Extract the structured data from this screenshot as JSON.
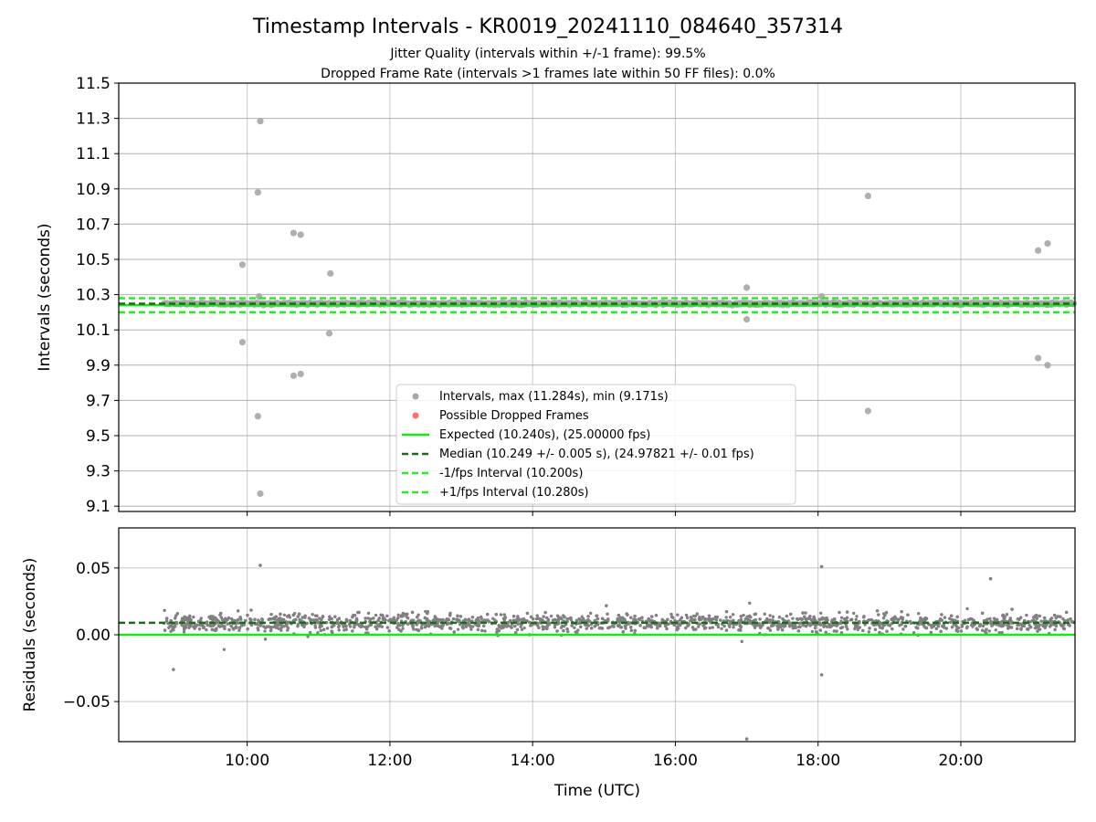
{
  "title": "Timestamp Intervals - KR0019_20241110_084640_357314",
  "subtitle_1": "Jitter Quality (intervals within +/-1 frame): 99.5%",
  "subtitle_2": "Dropped Frame Rate (intervals >1 frames late within 50 FF files): 0.0%",
  "colors": {
    "points": "#808080",
    "points_top": "#a6a6a6",
    "dropped": "#ff4d4d",
    "expected": "#19e619",
    "median": "#1a6b1a",
    "interval": "#22ee22",
    "grid": "#b0b0b0"
  },
  "chart_data": [
    {
      "type": "scatter",
      "ylabel": "Intervals (seconds)",
      "ylim": [
        9.07,
        11.5
      ],
      "xlim_hours": [
        8.2,
        21.6
      ],
      "yticks": [
        "9.1",
        "9.3",
        "9.5",
        "9.7",
        "9.9",
        "10.1",
        "10.3",
        "10.5",
        "10.7",
        "10.9",
        "11.1",
        "11.3",
        "11.5"
      ],
      "grid": true,
      "legend_position": "lower center",
      "lines": {
        "expected": 10.24,
        "median": 10.249,
        "minus_interval": 10.2,
        "plus_interval": 10.28
      },
      "outliers": [
        {
          "t": "10:11",
          "y": 11.284
        },
        {
          "t": "10:09",
          "y": 10.88
        },
        {
          "t": "09:56",
          "y": 10.47
        },
        {
          "t": "10:10",
          "y": 10.29
        },
        {
          "t": "10:39",
          "y": 10.65
        },
        {
          "t": "10:45",
          "y": 10.64
        },
        {
          "t": "11:10",
          "y": 10.42
        },
        {
          "t": "09:56",
          "y": 10.03
        },
        {
          "t": "11:09",
          "y": 10.08
        },
        {
          "t": "10:39",
          "y": 9.84
        },
        {
          "t": "10:45",
          "y": 9.85
        },
        {
          "t": "10:09",
          "y": 9.61
        },
        {
          "t": "10:11",
          "y": 9.171
        },
        {
          "t": "17:00",
          "y": 10.34
        },
        {
          "t": "17:00",
          "y": 10.16
        },
        {
          "t": "18:42",
          "y": 10.86
        },
        {
          "t": "18:42",
          "y": 9.64
        },
        {
          "t": "18:03",
          "y": 10.29
        },
        {
          "t": "21:05",
          "y": 10.55
        },
        {
          "t": "21:13",
          "y": 10.59
        },
        {
          "t": "21:05",
          "y": 9.94
        },
        {
          "t": "21:13",
          "y": 9.9
        }
      ],
      "series": [
        {
          "name": "Intervals, max (11.284s), min (9.171s)"
        },
        {
          "name": "Possible Dropped Frames"
        },
        {
          "name": "Expected (10.240s), (25.00000 fps)"
        },
        {
          "name": "Median (10.249 +/- 0.005 s), (24.97821 +/- 0.01 fps)"
        },
        {
          "name": "-1/fps Interval (10.200s)"
        },
        {
          "name": "+1/fps Interval (10.280s)"
        }
      ]
    },
    {
      "type": "scatter",
      "ylabel": "Residuals (seconds)",
      "xlabel": "Time (UTC)",
      "ylim": [
        -0.08,
        0.08
      ],
      "xlim_hours": [
        8.2,
        21.6
      ],
      "yticks": [
        "−0.05",
        "0.00",
        "0.05"
      ],
      "ytick_values": [
        -0.05,
        0.0,
        0.05
      ],
      "xticks": [
        "10:00",
        "12:00",
        "14:00",
        "16:00",
        "18:00",
        "20:00"
      ],
      "xtick_hours": [
        10,
        12,
        14,
        16,
        18,
        20
      ],
      "lines": {
        "expected": 0.0,
        "median": 0.009
      },
      "outliers": [
        {
          "t": "10:11",
          "y": 0.052
        },
        {
          "t": "18:03",
          "y": 0.051
        },
        {
          "t": "17:00",
          "y": -0.078
        },
        {
          "t": "18:03",
          "y": -0.03
        },
        {
          "t": "20:25",
          "y": 0.042
        },
        {
          "t": "08:58",
          "y": -0.026
        }
      ],
      "bulk": {
        "t_start": "08:50",
        "t_end": "21:35",
        "center": 0.009,
        "spread": 0.006
      }
    }
  ]
}
